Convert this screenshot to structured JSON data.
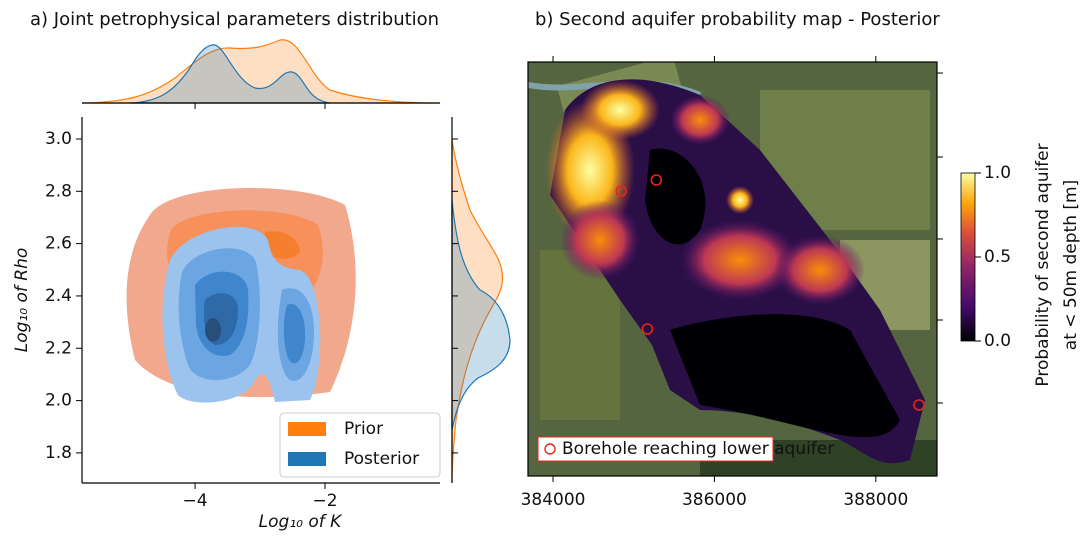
{
  "chart_data": [
    {
      "type": "kde",
      "title": "a) Joint petrophysical parameters distribution",
      "x_label": "Log₁₀ of K",
      "y_label": "Log₁₀ of Rho",
      "xlim": [
        -5.74,
        -0.23
      ],
      "xticks": [
        {
          "value": -4,
          "label": "−4"
        },
        {
          "value": -2,
          "label": "−2"
        }
      ],
      "ylim": [
        1.685,
        3.084
      ],
      "yticks": [
        1.8,
        {
          "value": 2,
          "label": "2.0"
        },
        2.2,
        2.4,
        2.6,
        2.8,
        {
          "value": 3,
          "label": "3.0"
        }
      ],
      "series": [
        {
          "name": "Prior",
          "color": "#ff7f0e"
        },
        {
          "name": "Posterior",
          "color": "#1f77b4"
        }
      ],
      "legend": "lower right"
    },
    {
      "type": "map",
      "title": "b) Second aquifer probability map - Posterior",
      "xlim": [
        383690,
        388758
      ],
      "xticks": [
        384000,
        386000,
        388000
      ],
      "series": [
        {
          "name": "Borehole reaching lower aquifer",
          "color": "#e8261c",
          "x": [
            384845,
            385280,
            385170,
            388535
          ]
        }
      ],
      "colorbar": {
        "lim": [
          0,
          1
        ],
        "ticks": [
          {
            "value": 0,
            "label": "0.0"
          },
          {
            "value": 0.5,
            "label": "0.5"
          },
          {
            "value": 1,
            "label": "1.0"
          }
        ],
        "label": [
          "Probability of second aquifer",
          "at < 50m depth [m]"
        ]
      }
    }
  ]
}
